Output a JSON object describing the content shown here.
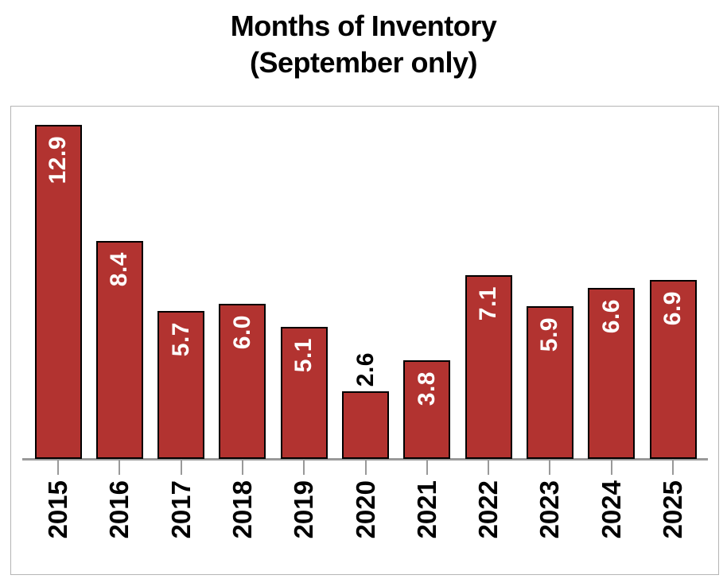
{
  "title": {
    "line1": "Months of Inventory",
    "line2": "(September only)"
  },
  "chart_data": {
    "type": "bar",
    "title": "Months of Inventory (September only)",
    "xlabel": "",
    "ylabel": "",
    "categories": [
      "2015",
      "2016",
      "2017",
      "2018",
      "2019",
      "2020",
      "2021",
      "2022",
      "2023",
      "2024",
      "2025"
    ],
    "values": [
      12.9,
      8.4,
      5.7,
      6.0,
      5.1,
      2.6,
      3.8,
      7.1,
      5.9,
      6.6,
      6.9
    ],
    "value_labels": [
      "12.9",
      "8.4",
      "5.7",
      "6.0",
      "5.1",
      "2.6",
      "3.8",
      "7.1",
      "5.9",
      "6.6",
      "6.9"
    ],
    "labels_outside_bar": [
      "2020"
    ],
    "ylim": [
      0,
      13.6
    ],
    "grid": false,
    "legend": "none",
    "colors": {
      "bar_fill": "#B23330",
      "bar_border": "#000000",
      "value_label_inside": "#FFFFFF",
      "value_label_outside": "#000000",
      "axis": "#999999",
      "frame_border": "#B5B5B5",
      "title_text": "#000000",
      "background": "#FFFFFF"
    }
  }
}
